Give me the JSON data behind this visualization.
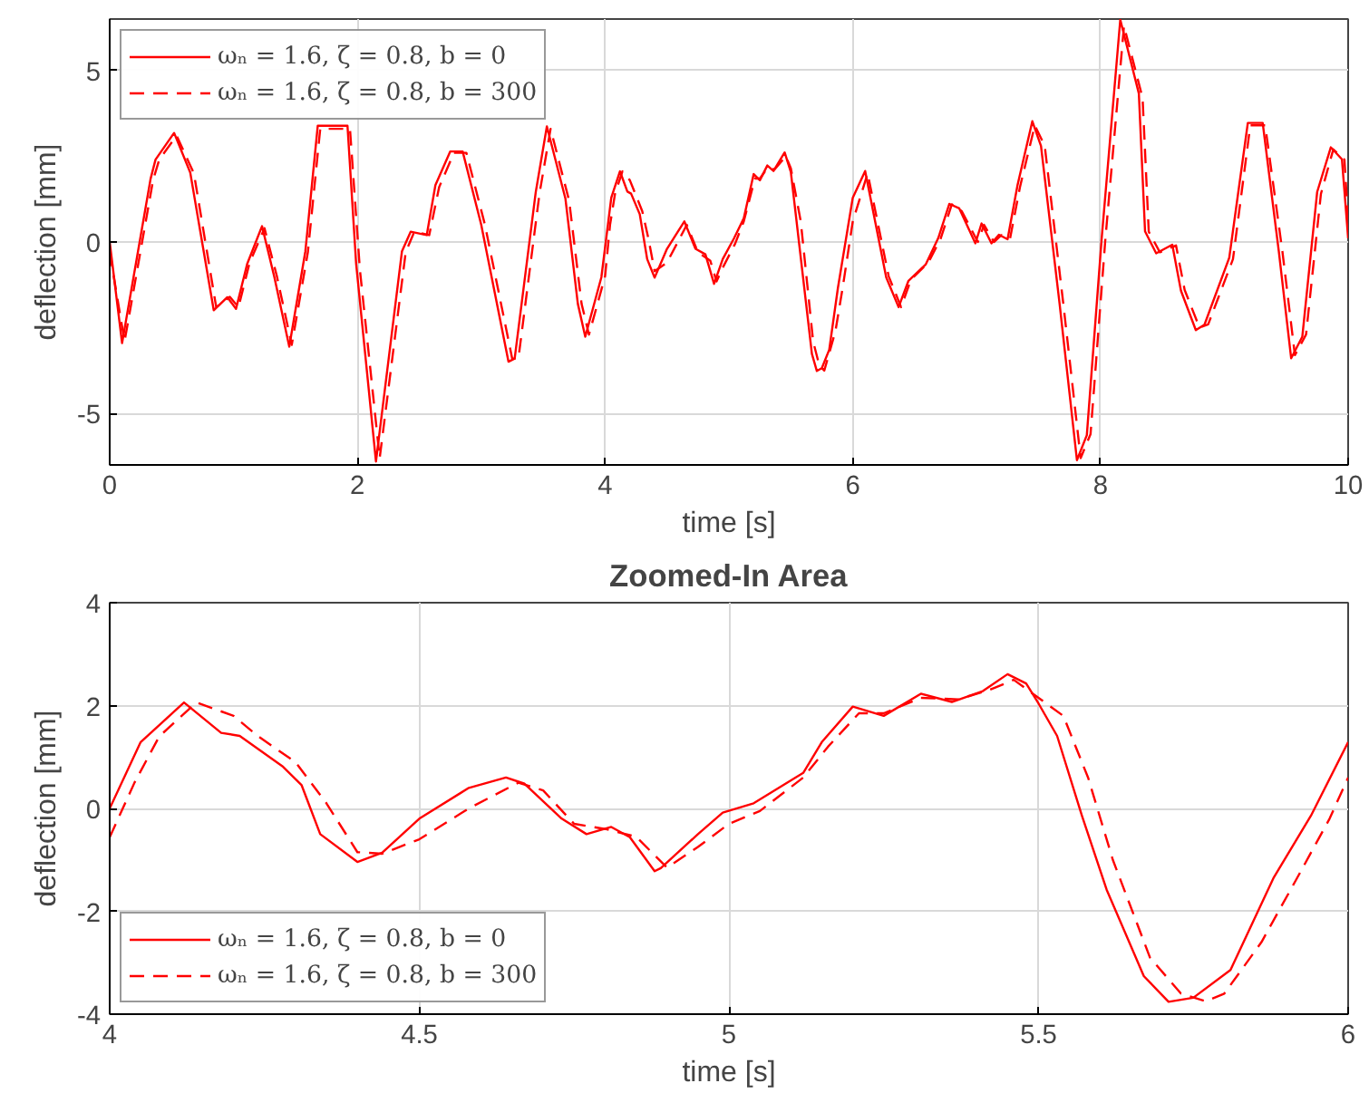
{
  "chart_data": [
    {
      "type": "line",
      "xlabel": "time [s]",
      "ylabel": "deflection [mm]",
      "xlim": [
        0,
        10
      ],
      "ylim": [
        -6.5,
        6.5
      ],
      "xticks": [
        0,
        2,
        4,
        6,
        8,
        10
      ],
      "yticks": [
        -5,
        0,
        5
      ],
      "grid": true,
      "legend": "top left",
      "series": [
        {
          "name": "ωₙ = 1.6, ζ = 0.8, b = 0",
          "color": "#ff0000",
          "line_style": "solid",
          "x": [
            0,
            0.1,
            0.33,
            0.37,
            0.52,
            0.65,
            0.84,
            0.95,
            1.02,
            1.11,
            1.23,
            1.33,
            1.45,
            1.58,
            1.68,
            1.92,
            1.99,
            2.15,
            2.36,
            2.43,
            2.56,
            2.63,
            2.75,
            2.85,
            3.0,
            3.22,
            3.27,
            3.44,
            3.53,
            3.68,
            3.78,
            3.84,
            3.97,
            4.05,
            4.12,
            4.18,
            4.21,
            4.28,
            4.34,
            4.4,
            4.5,
            4.64,
            4.73,
            4.81,
            4.88,
            4.95,
            5.04,
            5.12,
            5.2,
            5.25,
            5.31,
            5.36,
            5.45,
            5.5,
            5.57,
            5.67,
            5.71,
            5.75,
            5.81,
            5.88,
            6.0,
            6.1,
            6.27,
            6.37,
            6.45,
            6.59,
            6.69,
            6.78,
            6.86,
            6.99,
            7.04,
            7.12,
            7.18,
            7.25,
            7.33,
            7.45,
            7.52,
            7.67,
            7.81,
            7.89,
            8.01,
            8.16,
            8.31,
            8.36,
            8.45,
            8.58,
            8.65,
            8.77,
            8.84,
            9.04,
            9.19,
            9.31,
            9.44,
            9.54,
            9.63,
            9.75,
            9.86,
            9.95,
            10.0
          ],
          "values": [
            0,
            -2.95,
            1.84,
            2.4,
            3.18,
            2.03,
            -1.99,
            -1.61,
            -1.95,
            -0.64,
            0.46,
            -1.03,
            -3.05,
            -0.27,
            3.39,
            3.39,
            -0.64,
            -6.4,
            -0.27,
            0.3,
            0.2,
            1.66,
            2.64,
            2.64,
            0.5,
            -3.49,
            -3.4,
            1.45,
            3.37,
            1.26,
            -1.8,
            -2.76,
            -1.03,
            1.29,
            2.06,
            1.47,
            1.41,
            0.81,
            -0.5,
            -1.04,
            -0.2,
            0.6,
            -0.2,
            -0.36,
            -1.22,
            -0.5,
            0.1,
            0.69,
            1.98,
            1.8,
            2.23,
            2.07,
            2.61,
            2.04,
            -0.14,
            -3.26,
            -3.76,
            -3.68,
            -3.14,
            -1.34,
            1.29,
            2.07,
            -1.03,
            -1.9,
            -1.13,
            -0.65,
            0.11,
            1.11,
            0.98,
            -0.04,
            0.54,
            -0.04,
            0.21,
            0.08,
            1.65,
            3.52,
            2.8,
            -1.8,
            -6.36,
            -5.63,
            0.11,
            6.48,
            4.33,
            0.31,
            -0.33,
            -0.08,
            -1.42,
            -2.57,
            -2.41,
            -0.46,
            3.47,
            3.47,
            -0.27,
            -3.39,
            -2.76,
            1.46,
            2.76,
            2.41,
            0.11
          ]
        },
        {
          "name": "ωₙ = 1.6, ζ = 0.8, b = 300",
          "color": "#ff0000",
          "line_style": "dashed",
          "x": [
            0,
            0.12,
            0.35,
            0.4,
            0.54,
            0.68,
            0.86,
            0.97,
            1.04,
            1.13,
            1.25,
            1.35,
            1.47,
            1.6,
            1.7,
            1.94,
            2.02,
            2.18,
            2.39,
            2.46,
            2.58,
            2.66,
            2.78,
            2.88,
            3.03,
            3.25,
            3.3,
            3.47,
            3.56,
            3.71,
            3.81,
            3.87,
            4.0,
            4.04,
            4.08,
            4.14,
            4.2,
            4.3,
            4.35,
            4.4,
            4.5,
            4.66,
            4.75,
            4.85,
            4.9,
            4.95,
            5.05,
            5.12,
            5.21,
            5.25,
            5.31,
            5.37,
            5.46,
            5.5,
            5.58,
            5.68,
            5.73,
            5.77,
            5.86,
            5.92,
            6.0,
            6.12,
            6.29,
            6.39,
            6.47,
            6.61,
            6.71,
            6.8,
            6.88,
            7.01,
            7.06,
            7.14,
            7.2,
            7.27,
            7.35,
            7.47,
            7.55,
            7.7,
            7.84,
            7.92,
            8.04,
            8.19,
            8.34,
            8.39,
            8.48,
            8.61,
            8.68,
            8.8,
            8.87,
            9.07,
            9.21,
            9.33,
            9.47,
            9.57,
            9.66,
            9.78,
            9.88,
            9.97,
            10.0
          ],
          "values": [
            -0.3,
            -2.9,
            1.8,
            2.4,
            3.1,
            2.0,
            -1.9,
            -1.6,
            -1.9,
            -0.6,
            0.4,
            -1.0,
            -3.0,
            -0.3,
            3.3,
            3.3,
            -0.8,
            -6.3,
            -0.3,
            0.3,
            0.2,
            1.6,
            2.6,
            2.6,
            0.5,
            -3.4,
            -3.4,
            1.4,
            3.3,
            1.2,
            -1.8,
            -2.7,
            -1.0,
            0.5,
            1.4,
            2.06,
            1.8,
            0.9,
            0.1,
            -0.85,
            -0.6,
            0.5,
            -0.3,
            -0.55,
            -1.15,
            -0.75,
            -0.05,
            0.6,
            1.85,
            1.85,
            2.15,
            2.12,
            2.5,
            2.15,
            0.6,
            -2.9,
            -3.6,
            -3.75,
            -2.6,
            -1.3,
            0.6,
            2.0,
            -1.0,
            -1.9,
            -1.1,
            -0.6,
            0.1,
            1.1,
            0.9,
            0.0,
            0.5,
            0.0,
            0.2,
            0.1,
            1.6,
            3.4,
            2.8,
            -1.8,
            -6.3,
            -5.6,
            0.1,
            6.3,
            4.2,
            0.3,
            -0.3,
            -0.1,
            -1.4,
            -2.5,
            -2.4,
            -0.5,
            3.4,
            3.4,
            -0.3,
            -3.3,
            -2.7,
            1.4,
            2.7,
            2.4,
            0.6
          ]
        }
      ]
    },
    {
      "type": "line",
      "title": "Zoomed-In Area",
      "xlabel": "time [s]",
      "ylabel": "deflection [mm]",
      "xlim": [
        4,
        6
      ],
      "ylim": [
        -4,
        4
      ],
      "xticks": [
        4,
        4.5,
        5,
        5.5,
        6
      ],
      "yticks": [
        -4,
        -2,
        0,
        2,
        4
      ],
      "grid": true,
      "legend": "bottom left",
      "series": [
        {
          "name": "ωₙ = 1.6, ζ = 0.8, b = 0",
          "color": "#ff0000",
          "line_style": "solid",
          "x": [
            4.0,
            4.05,
            4.12,
            4.18,
            4.21,
            4.28,
            4.31,
            4.34,
            4.4,
            4.44,
            4.5,
            4.58,
            4.64,
            4.67,
            4.73,
            4.77,
            4.81,
            4.84,
            4.88,
            4.89,
            4.95,
            4.99,
            5.04,
            5.12,
            5.15,
            5.2,
            5.25,
            5.31,
            5.36,
            5.41,
            5.45,
            5.48,
            5.5,
            5.53,
            5.57,
            5.61,
            5.67,
            5.71,
            5.75,
            5.81,
            5.88,
            5.94,
            6.0
          ],
          "values": [
            0,
            1.29,
            2.06,
            1.47,
            1.41,
            0.81,
            0.45,
            -0.5,
            -1.04,
            -0.86,
            -0.2,
            0.4,
            0.6,
            0.48,
            -0.2,
            -0.5,
            -0.36,
            -0.56,
            -1.22,
            -1.16,
            -0.5,
            -0.08,
            0.1,
            0.69,
            1.29,
            1.98,
            1.8,
            2.23,
            2.07,
            2.28,
            2.61,
            2.43,
            2.04,
            1.41,
            -0.14,
            -1.58,
            -3.26,
            -3.76,
            -3.68,
            -3.14,
            -1.34,
            -0.14,
            1.29
          ]
        },
        {
          "name": "ωₙ = 1.6, ζ = 0.8, b = 300",
          "color": "#ff0000",
          "line_style": "dashed",
          "x": [
            4.0,
            4.04,
            4.08,
            4.14,
            4.2,
            4.24,
            4.3,
            4.35,
            4.4,
            4.44,
            4.5,
            4.58,
            4.66,
            4.7,
            4.75,
            4.8,
            4.85,
            4.9,
            4.95,
            5.0,
            5.05,
            5.12,
            5.16,
            5.21,
            5.25,
            5.31,
            5.37,
            5.42,
            5.46,
            5.5,
            5.54,
            5.58,
            5.62,
            5.68,
            5.73,
            5.77,
            5.8,
            5.86,
            5.92,
            5.97,
            6.0
          ],
          "values": [
            -0.56,
            0.5,
            1.4,
            2.06,
            1.8,
            1.4,
            0.9,
            0.1,
            -0.85,
            -0.88,
            -0.6,
            0.0,
            0.5,
            0.35,
            -0.3,
            -0.4,
            -0.55,
            -1.15,
            -0.75,
            -0.3,
            -0.05,
            0.6,
            1.2,
            1.85,
            1.85,
            2.15,
            2.12,
            2.3,
            2.5,
            2.15,
            1.8,
            0.6,
            -1.0,
            -2.9,
            -3.6,
            -3.75,
            -3.6,
            -2.6,
            -1.3,
            -0.2,
            0.6
          ]
        }
      ]
    }
  ]
}
